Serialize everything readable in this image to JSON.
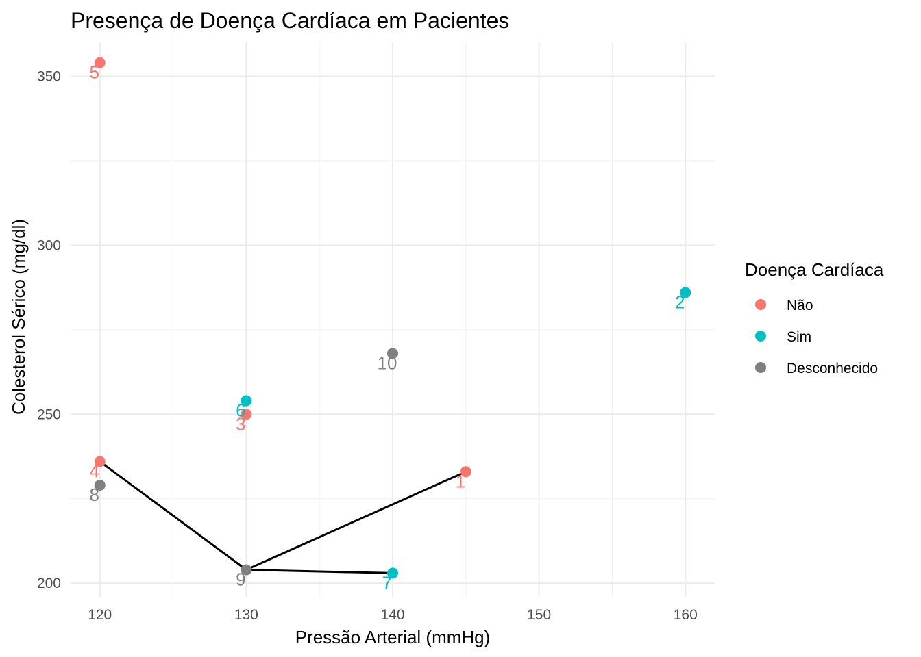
{
  "chart_data": {
    "type": "scatter",
    "title": "Presença de Doença Cardíaca em Pacientes",
    "xlabel": "Pressão Arterial (mmHg)",
    "ylabel": "Colesterol Sérico (mg/dl)",
    "xlim": [
      118,
      162
    ],
    "ylim": [
      196,
      360
    ],
    "x_ticks": [
      120,
      130,
      140,
      150,
      160
    ],
    "y_ticks": [
      200,
      250,
      300,
      350
    ],
    "grid": true,
    "legend": {
      "title": "Doença Cardíaca",
      "position": "right",
      "entries": [
        {
          "label": "Não",
          "color": "#F8766D"
        },
        {
          "label": "Sim",
          "color": "#00BFC4"
        },
        {
          "label": "Desconhecido",
          "color": "#808080"
        }
      ]
    },
    "points": [
      {
        "label": "1",
        "x": 145,
        "y": 233,
        "group": "Não"
      },
      {
        "label": "2",
        "x": 160,
        "y": 286,
        "group": "Sim"
      },
      {
        "label": "3",
        "x": 130,
        "y": 250,
        "group": "Não"
      },
      {
        "label": "4",
        "x": 120,
        "y": 236,
        "group": "Não"
      },
      {
        "label": "5",
        "x": 120,
        "y": 354,
        "group": "Não"
      },
      {
        "label": "6",
        "x": 130,
        "y": 254,
        "group": "Sim"
      },
      {
        "label": "7",
        "x": 140,
        "y": 203,
        "group": "Sim"
      },
      {
        "label": "8",
        "x": 120,
        "y": 229,
        "group": "Desconhecido"
      },
      {
        "label": "9",
        "x": 130,
        "y": 204,
        "group": "Desconhecido"
      },
      {
        "label": "10",
        "x": 140,
        "y": 268,
        "group": "Desconhecido"
      }
    ],
    "line_segments": [
      {
        "from": [
          120,
          236
        ],
        "to": [
          130,
          204
        ]
      },
      {
        "from": [
          130,
          204
        ],
        "to": [
          145,
          233
        ]
      },
      {
        "from": [
          130,
          204
        ],
        "to": [
          140,
          203
        ]
      }
    ],
    "line_color": "#000000"
  }
}
